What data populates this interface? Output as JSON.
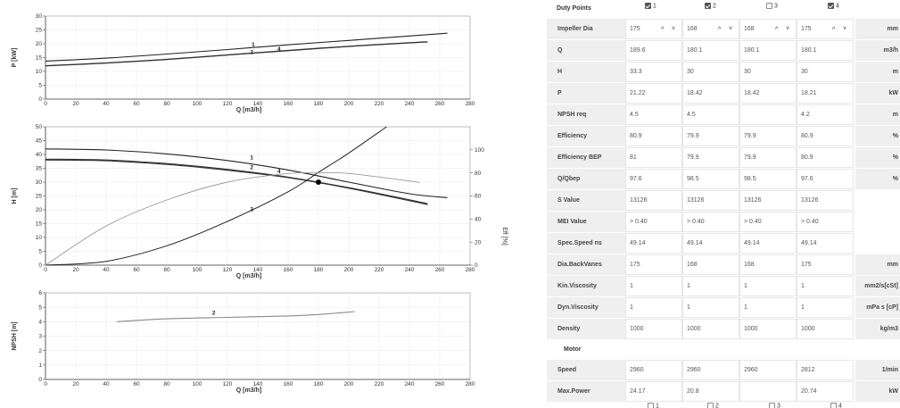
{
  "chart_data": [
    {
      "type": "line",
      "title": "",
      "xlabel": "Q [m3/h]",
      "ylabel": "P [kW]",
      "xlim": [
        0,
        280
      ],
      "ylim": [
        0,
        30
      ],
      "xticks": [
        "0",
        "20",
        "40",
        "60",
        "80",
        "100",
        "120",
        "140",
        "160",
        "180",
        "200",
        "220",
        "240",
        "260",
        "280"
      ],
      "yticks": [
        "0",
        "5",
        "10",
        "15",
        "20",
        "25",
        "30"
      ],
      "grid": true,
      "series": [
        {
          "name": "1",
          "x": [
            0,
            40,
            80,
            120,
            160,
            200,
            240,
            265
          ],
          "y": [
            13.7,
            14.8,
            16.3,
            17.9,
            19.6,
            21.2,
            22.8,
            23.8
          ]
        },
        {
          "name": "2",
          "x": [
            0,
            40,
            80,
            120,
            160,
            200,
            240,
            252
          ],
          "y": [
            12.0,
            13.0,
            14.3,
            15.9,
            17.5,
            19.0,
            20.3,
            20.6
          ]
        },
        {
          "name": "4",
          "x": [
            0,
            40,
            80,
            120,
            160,
            200,
            240,
            252
          ],
          "y": [
            12.1,
            13.1,
            14.4,
            16.0,
            17.6,
            19.1,
            20.4,
            20.7
          ]
        }
      ],
      "labels": [
        {
          "text": "1",
          "x": 137,
          "y": 19.0
        },
        {
          "text": "2",
          "x": 136,
          "y": 16.3
        },
        {
          "text": "4",
          "x": 154,
          "y": 17.5
        }
      ]
    },
    {
      "type": "line",
      "title": "",
      "xlabel": "Q [m3/h]",
      "ylabel": "H [m]",
      "y2label": "Eff [%]",
      "xlim": [
        0,
        280
      ],
      "ylim": [
        0,
        50
      ],
      "y2lim": [
        0,
        120
      ],
      "xticks": [
        "0",
        "20",
        "40",
        "60",
        "80",
        "100",
        "120",
        "140",
        "160",
        "180",
        "200",
        "220",
        "240",
        "260",
        "280"
      ],
      "yticks": [
        "0",
        "5",
        "10",
        "15",
        "20",
        "25",
        "30",
        "35",
        "40",
        "45",
        "50"
      ],
      "y2ticks": [
        "0",
        "20",
        "40",
        "60",
        "80",
        "100"
      ],
      "grid": true,
      "series": [
        {
          "name": "1",
          "x": [
            0,
            40,
            80,
            120,
            160,
            200,
            240,
            265
          ],
          "y": [
            42.0,
            41.6,
            40.2,
            37.8,
            34.4,
            30.0,
            25.8,
            24.4
          ]
        },
        {
          "name": "2",
          "x": [
            0,
            40,
            80,
            120,
            160,
            200,
            240,
            252
          ],
          "y": [
            38.0,
            37.7,
            36.4,
            34.3,
            31.6,
            27.8,
            23.3,
            21.9
          ]
        },
        {
          "name": "4",
          "x": [
            0,
            40,
            80,
            120,
            160,
            200,
            240,
            252
          ],
          "y": [
            38.3,
            38.0,
            36.7,
            34.6,
            31.8,
            28.0,
            23.6,
            22.2
          ]
        },
        {
          "name": "system",
          "x": [
            0,
            40,
            80,
            120,
            160,
            180,
            200,
            225
          ],
          "y": [
            0,
            1.4,
            7.0,
            15.8,
            26.5,
            33.5,
            40.5,
            50.0
          ]
        },
        {
          "name": "eff-2",
          "axis": "y2",
          "x": [
            0,
            40,
            80,
            120,
            160,
            180,
            200,
            240,
            247
          ],
          "y": [
            0,
            34.0,
            56.5,
            72.0,
            79.5,
            80.0,
            79.5,
            73.0,
            71.5
          ]
        }
      ],
      "duty_point": {
        "x": 180,
        "y": 30
      },
      "labels": [
        {
          "text": "1",
          "x": 136,
          "y": 38.3
        },
        {
          "text": "2",
          "x": 136,
          "y": 34.6
        },
        {
          "text": "4",
          "x": 154,
          "y": 33.2
        },
        {
          "text": "2",
          "x": 136,
          "y": 19.5
        }
      ]
    },
    {
      "type": "line",
      "title": "",
      "xlabel": "Q [m3/h]",
      "ylabel": "NPSH [m]",
      "xlim": [
        0,
        280
      ],
      "ylim": [
        0,
        6
      ],
      "xticks": [
        "0",
        "20",
        "40",
        "60",
        "80",
        "100",
        "120",
        "140",
        "160",
        "180",
        "200",
        "220",
        "240",
        "260",
        "280"
      ],
      "yticks": [
        "0",
        "1",
        "2",
        "3",
        "4",
        "5",
        "6"
      ],
      "grid": true,
      "series": [
        {
          "name": "2",
          "x": [
            47,
            80,
            120,
            160,
            180,
            204
          ],
          "y": [
            4.0,
            4.2,
            4.3,
            4.4,
            4.5,
            4.7
          ]
        }
      ],
      "labels": [
        {
          "text": "2",
          "x": 111,
          "y": 4.5
        }
      ]
    }
  ],
  "panel": {
    "title": "Duty Points",
    "duty_points": [
      {
        "label": "1",
        "checked": true
      },
      {
        "label": "2",
        "checked": true
      },
      {
        "label": "3",
        "checked": false
      },
      {
        "label": "4",
        "checked": true
      }
    ],
    "impeller": {
      "label": "Impeller Dia",
      "values": [
        "175",
        "168",
        "168",
        "175"
      ],
      "unit": "mm"
    },
    "rows": [
      {
        "label": "Q",
        "values": [
          "189.6",
          "180.1",
          "180.1",
          "180.1"
        ],
        "unit": "m3/h"
      },
      {
        "label": "H",
        "values": [
          "33.3",
          "30",
          "30",
          "30"
        ],
        "unit": "m"
      },
      {
        "label": "P",
        "values": [
          "21.22",
          "18.42",
          "18.42",
          "18.21"
        ],
        "unit": "kW"
      },
      {
        "label": "NPSH req",
        "values": [
          "4.5",
          "4.5",
          "",
          "4.2"
        ],
        "unit": "m"
      },
      {
        "label": "Efficiency",
        "values": [
          "80.9",
          "79.9",
          "79.9",
          "80.9"
        ],
        "unit": "%"
      },
      {
        "label": "Efficiency BEP",
        "values": [
          "81",
          "79.9",
          "79.9",
          "80.9"
        ],
        "unit": "%"
      },
      {
        "label": "Q/Qbep",
        "values": [
          "97.6",
          "98.5",
          "98.5",
          "97.6"
        ],
        "unit": "%"
      },
      {
        "label": "S Value",
        "values": [
          "13126",
          "13126",
          "13126",
          "13126"
        ],
        "unit": ""
      },
      {
        "label": "MEI Value",
        "values": [
          "> 0.40",
          "> 0.40",
          "> 0.40",
          "> 0.40"
        ],
        "unit": ""
      },
      {
        "label": "Spec.Speed ns",
        "values": [
          "49.14",
          "49.14",
          "49.14",
          "49.14"
        ],
        "unit": ""
      },
      {
        "label": "Dia.BackVanes",
        "values": [
          "175",
          "168",
          "168",
          "175"
        ],
        "unit": "mm"
      },
      {
        "label": "Kin.Viscosity",
        "values": [
          "1",
          "1",
          "1",
          "1"
        ],
        "unit": "mm2/s[cSt]"
      },
      {
        "label": "Dyn.Viscosity",
        "values": [
          "1",
          "1",
          "1",
          "1"
        ],
        "unit": "mPa s [cP]"
      },
      {
        "label": "Density",
        "values": [
          "1000",
          "1000",
          "1000",
          "1000"
        ],
        "unit": "kg/m3"
      }
    ],
    "motor_title": "Motor",
    "motor_rows": [
      {
        "label": "Speed",
        "values": [
          "2960",
          "2960",
          "2960",
          "2812"
        ],
        "unit": "1/min"
      },
      {
        "label": "Max.Power",
        "values": [
          "24.17",
          "20.8",
          "",
          "20.74"
        ],
        "unit": "kW"
      }
    ],
    "bottom_checks": [
      {
        "label": "1",
        "checked": false
      },
      {
        "label": "2",
        "checked": false
      },
      {
        "label": "3",
        "checked": false
      },
      {
        "label": "4",
        "checked": false
      }
    ]
  }
}
